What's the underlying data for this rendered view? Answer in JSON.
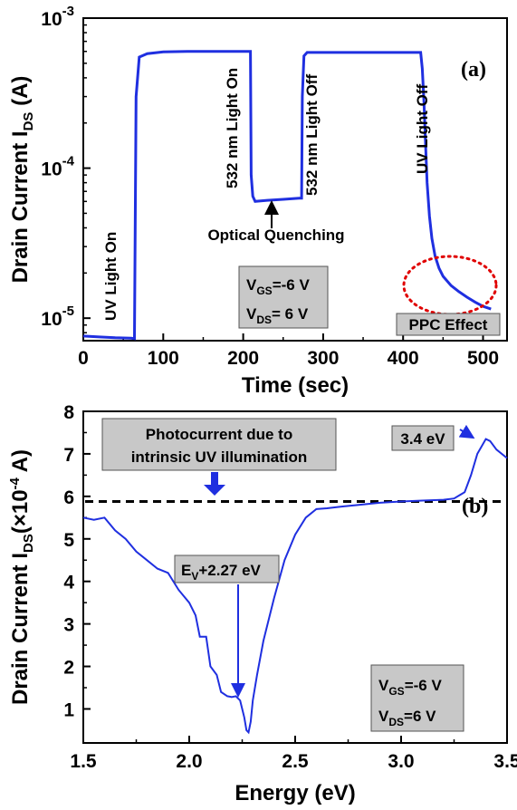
{
  "colors": {
    "line": "#1f2fe0",
    "ppc_circle": "#e00000",
    "box_fill": "#c8c8c8",
    "dashed": "#000000"
  },
  "chart_data": [
    {
      "type": "line",
      "panel_label": "(a)",
      "xlabel": "Time (sec)",
      "ylabel_main": "Drain Current I",
      "ylabel_sub": "DS",
      "ylabel_unit": " (A)",
      "xlim": [
        0,
        530
      ],
      "ylim_exp": [
        -5.15,
        -3
      ],
      "y_scale": "log",
      "x_ticks": [
        0,
        100,
        200,
        300,
        400,
        500
      ],
      "y_ticks": [
        {
          "value": 1e-05,
          "base": "10",
          "exp": "-5"
        },
        {
          "value": 0.0001,
          "base": "10",
          "exp": "-4"
        },
        {
          "value": 0.001,
          "base": "10",
          "exp": "-3"
        }
      ],
      "series": [
        {
          "x": [
            0,
            20,
            40,
            60,
            64,
            66,
            70,
            80,
            100,
            130,
            160,
            200,
            209,
            210,
            212,
            215,
            230,
            250,
            270,
            273,
            274,
            276,
            280,
            300,
            350,
            400,
            422,
            424,
            426,
            428,
            430,
            433,
            436,
            440,
            445,
            450,
            460,
            470,
            480,
            490,
            500,
            510
          ],
          "y": [
            7.6e-06,
            7.5e-06,
            7.4e-06,
            7.35e-06,
            7.3e-06,
            0.0003,
            0.00055,
            0.00058,
            0.000595,
            0.0006,
            0.0006,
            0.0006,
            0.0006,
            9e-05,
            6.5e-05,
            6e-05,
            6.1e-05,
            6.2e-05,
            6.3e-05,
            6.3e-05,
            0.0003,
            0.00056,
            0.00059,
            0.00059,
            0.00059,
            0.00059,
            0.00059,
            0.00046,
            0.00028,
            0.00015,
            8e-05,
            4.8e-05,
            3.4e-05,
            2.6e-05,
            2.15e-05,
            1.9e-05,
            1.65e-05,
            1.5e-05,
            1.38e-05,
            1.28e-05,
            1.2e-05,
            1.15e-05
          ]
        }
      ],
      "annotations": {
        "uv_on": "UV Light On",
        "green_on": "532 nm Light On",
        "green_off": "532 nm Light Off",
        "uv_off": "UV Light Off",
        "quenching": "Optical Quenching",
        "ppc": "PPC Effect"
      },
      "bias_box": {
        "vgs_main": "V",
        "vgs_sub": "GS",
        "vgs_val": "=-6 V",
        "vds_main": "V",
        "vds_sub": "DS",
        "vds_val": "= 6 V"
      }
    },
    {
      "type": "line",
      "panel_label": "(b)",
      "xlabel": "Energy (eV)",
      "ylabel_main": "Drain Current I",
      "ylabel_sub": "DS",
      "ylabel_unit_pre": "(×10",
      "ylabel_unit_exp": "-4",
      "ylabel_unit_post": " A)",
      "xlim": [
        1.5,
        3.5
      ],
      "ylim": [
        0.2,
        8
      ],
      "x_ticks": [
        "1.5",
        "2.0",
        "2.5",
        "3.0",
        "3.5"
      ],
      "y_ticks": [
        "1",
        "2",
        "3",
        "4",
        "5",
        "6",
        "7",
        "8"
      ],
      "reference_level": 5.88,
      "series": [
        {
          "x": [
            1.5,
            1.55,
            1.6,
            1.65,
            1.7,
            1.75,
            1.8,
            1.85,
            1.9,
            1.95,
            2.0,
            2.03,
            2.05,
            2.08,
            2.1,
            2.13,
            2.15,
            2.18,
            2.2,
            2.22,
            2.24,
            2.25,
            2.26,
            2.27,
            2.28,
            2.29,
            2.3,
            2.32,
            2.35,
            2.4,
            2.45,
            2.5,
            2.55,
            2.6,
            2.65,
            2.7,
            2.8,
            2.9,
            3.0,
            3.1,
            3.2,
            3.25,
            3.3,
            3.33,
            3.36,
            3.4,
            3.42,
            3.45,
            3.5
          ],
          "y": [
            5.5,
            5.45,
            5.5,
            5.2,
            5.0,
            4.7,
            4.5,
            4.3,
            4.2,
            3.8,
            3.5,
            3.2,
            2.7,
            2.7,
            2.0,
            1.8,
            1.4,
            1.3,
            1.28,
            1.3,
            1.2,
            1.0,
            0.8,
            0.5,
            0.45,
            0.7,
            1.2,
            1.8,
            2.6,
            3.6,
            4.5,
            5.1,
            5.5,
            5.7,
            5.72,
            5.75,
            5.8,
            5.85,
            5.88,
            5.9,
            5.92,
            5.95,
            6.1,
            6.5,
            7.0,
            7.35,
            7.3,
            7.1,
            6.9
          ]
        }
      ],
      "annotations": {
        "photocurrent_line1": "Photocurrent due to",
        "photocurrent_line2": "intrinsic UV illumination",
        "peak": "3.4 eV",
        "dip_main": "E",
        "dip_sub": "V",
        "dip_val": "+2.27 eV"
      },
      "bias_box": {
        "vgs_main": "V",
        "vgs_sub": "GS",
        "vgs_val": "=-6 V",
        "vds_main": "V",
        "vds_sub": "DS",
        "vds_val": "=6 V"
      }
    }
  ]
}
